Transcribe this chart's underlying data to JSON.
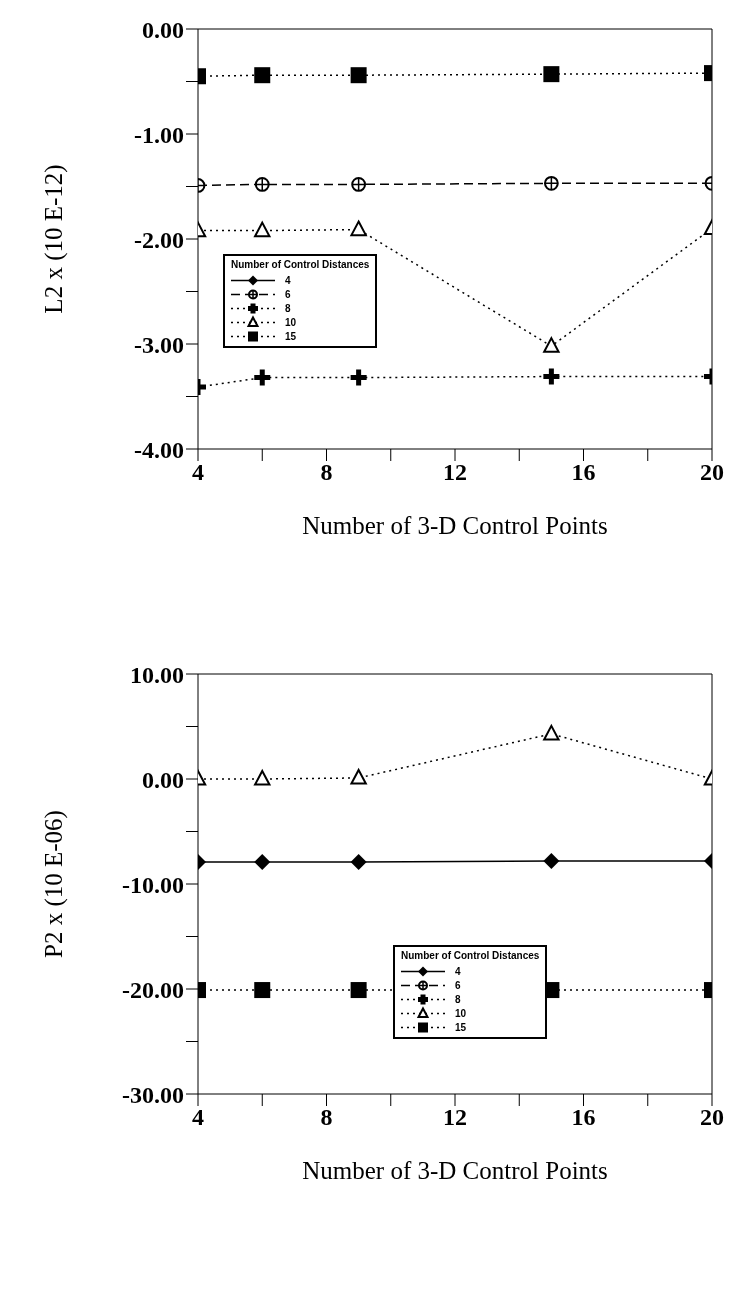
{
  "chart_data": [
    {
      "type": "line",
      "x": [
        4,
        6,
        9,
        15,
        20
      ],
      "xlabel": "Number of 3-D Control Points",
      "ylabel": "L2 x (10 E-12)",
      "legend_title": "Number of Control Distances",
      "legend": "left",
      "grid": false,
      "xlim": [
        4,
        20
      ],
      "xticks": [
        4,
        {
          "value": 6,
          "label": null
        },
        8,
        {
          "value": 10,
          "label": null
        },
        12,
        {
          "value": 14,
          "label": null
        },
        16,
        {
          "value": 18,
          "label": null
        },
        20
      ],
      "ylim": [
        -4,
        0
      ],
      "yticks": [
        {
          "value": 0,
          "label": "0.00"
        },
        {
          "value": -0.5,
          "label": null
        },
        {
          "value": -1,
          "label": "-1.00"
        },
        {
          "value": -1.5,
          "label": null
        },
        {
          "value": -2,
          "label": "-2.00"
        },
        {
          "value": -2.5,
          "label": null
        },
        {
          "value": -3,
          "label": "-3.00"
        },
        {
          "value": -3.5,
          "label": null
        },
        {
          "value": -4,
          "label": "-4.00"
        }
      ],
      "series": [
        {
          "name": "4",
          "color": "#000000",
          "marker": "diamond",
          "line_style": "solid",
          "values": [
            null,
            null,
            null,
            null,
            null
          ]
        },
        {
          "name": "6",
          "color": "#000000",
          "marker": "circle",
          "line_style": "dashed",
          "values": [
            -1.49,
            -1.48,
            -1.48,
            -1.47,
            -1.47
          ]
        },
        {
          "name": "8",
          "color": "#000000",
          "marker": "cross",
          "line_style": "dotted",
          "values": [
            -3.41,
            -3.32,
            -3.32,
            -3.31,
            -3.31
          ]
        },
        {
          "name": "10",
          "color": "#000000",
          "marker": "triangle",
          "line_style": "dotted",
          "values": [
            -1.92,
            -1.92,
            -1.91,
            -3.02,
            -1.9
          ]
        },
        {
          "name": "15",
          "color": "#000000",
          "marker": "square",
          "line_style": "dotted",
          "values": [
            -0.45,
            -0.44,
            -0.44,
            -0.43,
            -0.42
          ]
        }
      ]
    },
    {
      "type": "line",
      "x": [
        4,
        6,
        9,
        15,
        20
      ],
      "xlabel": "Number of 3-D Control Points",
      "ylabel": "P2 x (10 E-06)",
      "legend_title": "Number of Control Distances",
      "legend": "center",
      "grid": false,
      "xlim": [
        4,
        20
      ],
      "xticks": [
        4,
        {
          "value": 6,
          "label": null
        },
        8,
        {
          "value": 10,
          "label": null
        },
        12,
        {
          "value": 14,
          "label": null
        },
        16,
        {
          "value": 18,
          "label": null
        },
        20
      ],
      "ylim": [
        -30,
        10
      ],
      "yticks": [
        {
          "value": 10,
          "label": "10.00"
        },
        {
          "value": 5,
          "label": null
        },
        {
          "value": 0,
          "label": "0.00"
        },
        {
          "value": -5,
          "label": null
        },
        {
          "value": -10,
          "label": "-10.00"
        },
        {
          "value": -15,
          "label": null
        },
        {
          "value": -20,
          "label": "-20.00"
        },
        {
          "value": -25,
          "label": null
        },
        {
          "value": -30,
          "label": "-30.00"
        }
      ],
      "series": [
        {
          "name": "4",
          "color": "#000000",
          "marker": "diamond",
          "line_style": "solid",
          "values": [
            -7.9,
            -7.9,
            -7.9,
            -7.8,
            -7.8
          ]
        },
        {
          "name": "6",
          "color": "#000000",
          "marker": "circle",
          "line_style": "dashed",
          "values": [
            null,
            null,
            null,
            null,
            null
          ]
        },
        {
          "name": "8",
          "color": "#000000",
          "marker": "cross",
          "line_style": "dotted",
          "values": [
            null,
            null,
            null,
            null,
            null
          ]
        },
        {
          "name": "10",
          "color": "#000000",
          "marker": "triangle",
          "line_style": "dotted",
          "values": [
            0,
            0,
            0.1,
            4.3,
            0
          ]
        },
        {
          "name": "15",
          "color": "#000000",
          "marker": "square",
          "line_style": "dotted",
          "values": [
            -20.1,
            -20.1,
            -20.1,
            -20.1,
            -20.1
          ]
        }
      ]
    }
  ]
}
